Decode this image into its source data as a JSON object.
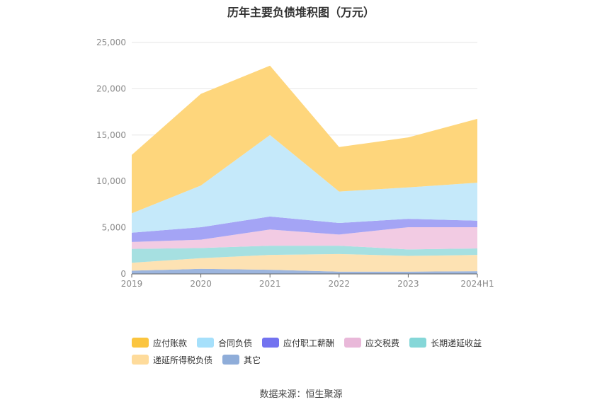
{
  "chart_data": {
    "type": "area",
    "stacked": true,
    "title": "历年主要负债堆积图（万元）",
    "categories": [
      "2019",
      "2020",
      "2021",
      "2022",
      "2023",
      "2024H1"
    ],
    "ylim": [
      0,
      25000
    ],
    "yticks": [
      "0",
      "5,000",
      "10,000",
      "15,000",
      "20,000",
      "25,000"
    ],
    "grid": true,
    "legend_position": "bottom",
    "series": [
      {
        "name": "其它",
        "color": "#9cb5de",
        "values": [
          350,
          550,
          450,
          250,
          250,
          300
        ]
      },
      {
        "name": "递延所得税负债",
        "color": "#fde2b3",
        "values": [
          850,
          1150,
          1600,
          1900,
          1700,
          1750
        ]
      },
      {
        "name": "长期递延收益",
        "color": "#a6e0e1",
        "values": [
          1500,
          1100,
          1000,
          900,
          700,
          700
        ]
      },
      {
        "name": "应交税费",
        "color": "#f2cbe3",
        "values": [
          750,
          900,
          1750,
          1200,
          2400,
          2300
        ]
      },
      {
        "name": "应付职工薪酬",
        "color": "#a4a4f5",
        "values": [
          1000,
          1350,
          1400,
          1250,
          900,
          700
        ]
      },
      {
        "name": "合同负债",
        "color": "#c5e9fa",
        "values": [
          2100,
          4500,
          8800,
          3400,
          3400,
          4100
        ]
      },
      {
        "name": "应付账款",
        "color": "#fed67c",
        "values": [
          6300,
          9900,
          7500,
          4800,
          5400,
          6900
        ]
      }
    ]
  },
  "legend": {
    "rows": [
      [
        {
          "label": "应付账款",
          "color": "#fbc53f"
        },
        {
          "label": "合同负债",
          "color": "#a6e0fb"
        },
        {
          "label": "应付职工薪酬",
          "color": "#7373f0"
        },
        {
          "label": "应交税费",
          "color": "#e9b8d9"
        },
        {
          "label": "长期递延收益",
          "color": "#85d7d8"
        }
      ],
      [
        {
          "label": "递延所得税负债",
          "color": "#fedb9b"
        },
        {
          "label": "其它",
          "color": "#8fadd9"
        }
      ]
    ]
  },
  "source": "数据来源：恒生聚源"
}
